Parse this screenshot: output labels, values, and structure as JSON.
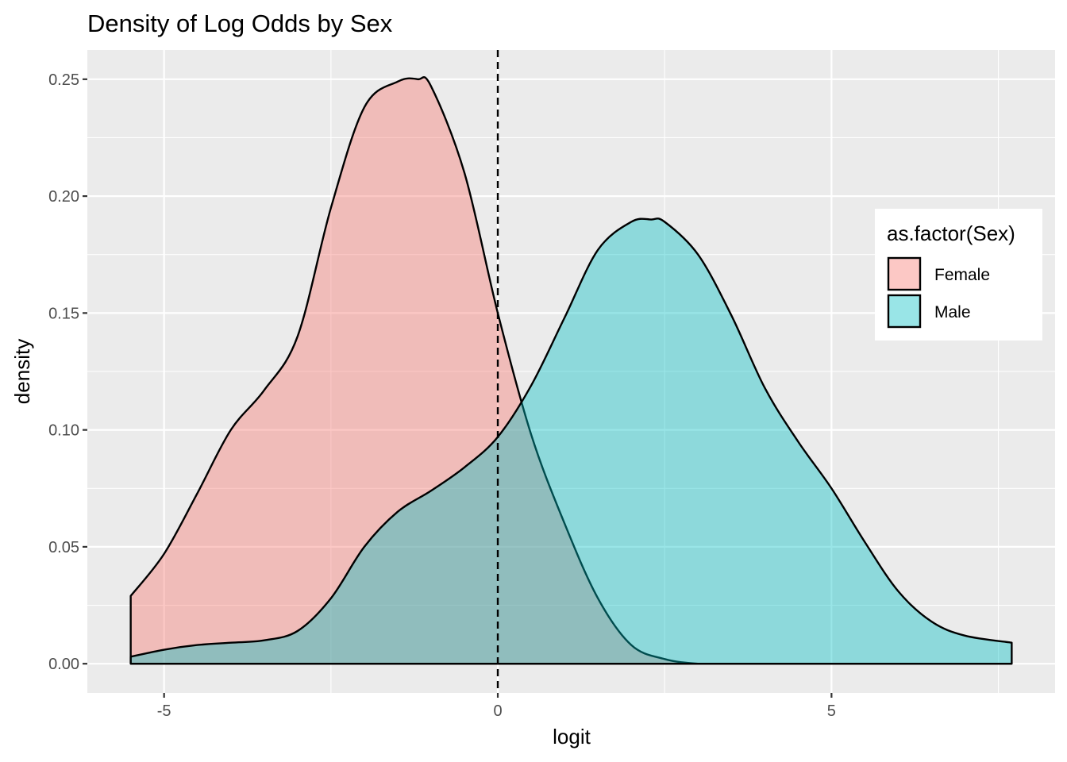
{
  "chart_data": {
    "type": "area",
    "title": "Density of Log Odds by Sex",
    "xlabel": "logit",
    "ylabel": "density",
    "xlim": [
      -6.15,
      8.35
    ],
    "ylim": [
      -0.0125,
      0.2625
    ],
    "x_ticks": [
      -5,
      0,
      5
    ],
    "x_tick_labels": [
      "-5",
      "0",
      "5"
    ],
    "y_ticks": [
      0.0,
      0.05,
      0.1,
      0.15,
      0.2,
      0.25
    ],
    "y_tick_labels": [
      "0.00",
      "0.05",
      "0.10",
      "0.15",
      "0.20",
      "0.25"
    ],
    "grid": true,
    "reference_line": {
      "x": 0,
      "style": "dashed",
      "color": "#000000"
    },
    "legend": {
      "title": "as.factor(Sex)",
      "position": "right"
    },
    "series": [
      {
        "name": "Female",
        "color": "#F8766D",
        "opacity": 0.4,
        "x": [
          -5.5,
          -5.0,
          -4.5,
          -4.0,
          -3.5,
          -3.0,
          -2.5,
          -2.0,
          -1.5,
          -1.2,
          -1.0,
          -0.5,
          0.0,
          0.5,
          1.0,
          1.5,
          2.0,
          2.5,
          3.0,
          3.5,
          4.0,
          4.5,
          5.0,
          5.5,
          6.0,
          6.5,
          7.0,
          7.7
        ],
        "values": [
          0.029,
          0.047,
          0.073,
          0.1,
          0.117,
          0.14,
          0.195,
          0.238,
          0.249,
          0.25,
          0.247,
          0.21,
          0.15,
          0.098,
          0.06,
          0.028,
          0.008,
          0.002,
          0.0,
          0.0,
          0.0,
          0.0,
          0.0,
          0.0,
          0.0,
          0.0,
          0.0,
          0.0
        ]
      },
      {
        "name": "Male",
        "color": "#00BFC4",
        "opacity": 0.4,
        "x": [
          -5.5,
          -5.0,
          -4.5,
          -4.0,
          -3.5,
          -3.0,
          -2.5,
          -2.0,
          -1.5,
          -1.0,
          -0.5,
          0.0,
          0.5,
          1.0,
          1.5,
          2.0,
          2.3,
          2.5,
          3.0,
          3.5,
          4.0,
          4.5,
          5.0,
          5.5,
          6.0,
          6.5,
          7.0,
          7.7
        ],
        "values": [
          0.003,
          0.006,
          0.008,
          0.009,
          0.01,
          0.014,
          0.028,
          0.05,
          0.065,
          0.074,
          0.084,
          0.097,
          0.119,
          0.148,
          0.177,
          0.189,
          0.19,
          0.189,
          0.175,
          0.149,
          0.118,
          0.095,
          0.075,
          0.052,
          0.031,
          0.018,
          0.012,
          0.009
        ]
      }
    ]
  }
}
